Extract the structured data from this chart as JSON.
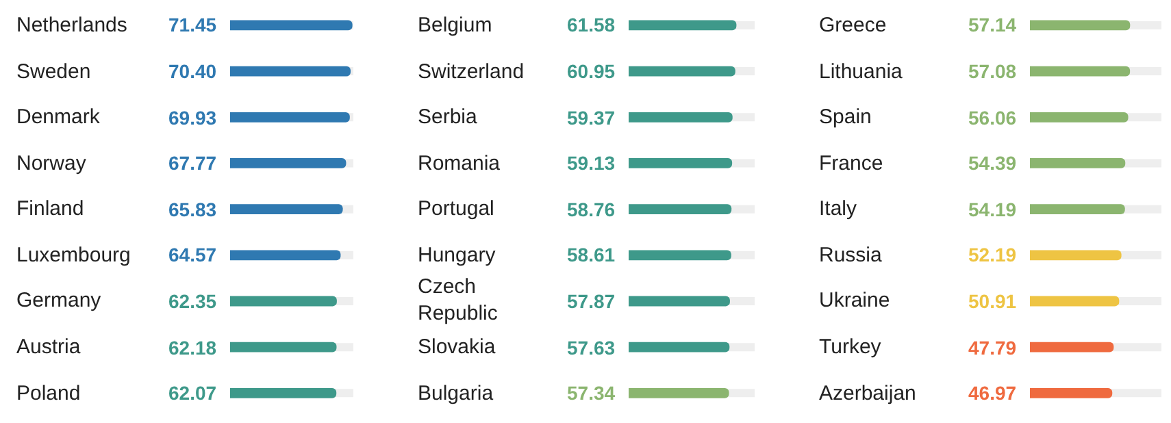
{
  "chart_data": [
    {
      "type": "bar",
      "orientation": "horizontal",
      "data_labels": true,
      "xlim": [
        0,
        72
      ],
      "categories": [
        "Netherlands",
        "Sweden",
        "Denmark",
        "Norway",
        "Finland",
        "Luxembourg",
        "Germany",
        "Austria",
        "Poland"
      ],
      "values": [
        71.45,
        70.4,
        69.93,
        67.77,
        65.83,
        64.57,
        62.35,
        62.18,
        62.07
      ],
      "value_labels": [
        "71.45",
        "70.40",
        "69.93",
        "67.77",
        "65.83",
        "64.57",
        "62.35",
        "62.18",
        "62.07"
      ],
      "colors": [
        "#2f79b1",
        "#2f79b1",
        "#2f79b1",
        "#2f79b1",
        "#2f79b1",
        "#2f79b1",
        "#3e998a",
        "#3e998a",
        "#3e998a"
      ]
    },
    {
      "type": "bar",
      "orientation": "horizontal",
      "data_labels": true,
      "xlim": [
        0,
        72
      ],
      "categories": [
        "Belgium",
        "Switzerland",
        "Serbia",
        "Romania",
        "Portugal",
        "Hungary",
        "Czech Republic",
        "Slovakia",
        "Bulgaria"
      ],
      "values": [
        61.58,
        60.95,
        59.37,
        59.13,
        58.76,
        58.61,
        57.87,
        57.63,
        57.34
      ],
      "colors": [
        "#3e998a",
        "#3e998a",
        "#3e998a",
        "#3e998a",
        "#3e998a",
        "#3e998a",
        "#3e998a",
        "#3e998a",
        "#8bb56f"
      ]
    },
    {
      "type": "bar",
      "orientation": "horizontal",
      "data_labels": true,
      "xlim": [
        0,
        75
      ],
      "categories": [
        "Greece",
        "Lithuania",
        "Spain",
        "France",
        "Italy",
        "Russia",
        "Ukraine",
        "Turkey",
        "Azerbaijan"
      ],
      "values": [
        57.14,
        57.08,
        56.06,
        54.39,
        54.19,
        52.19,
        50.91,
        47.79,
        46.97
      ],
      "colors": [
        "#8bb56f",
        "#8bb56f",
        "#8bb56f",
        "#8bb56f",
        "#8bb56f",
        "#eec443",
        "#eec443",
        "#ef6a3f",
        "#ef6a3f"
      ]
    }
  ]
}
